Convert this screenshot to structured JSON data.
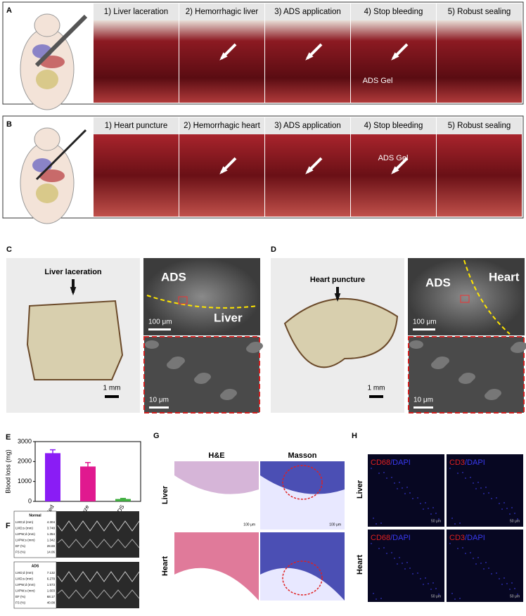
{
  "panel_a": {
    "label": "A",
    "steps": [
      "1) Liver laceration",
      "2) Hemorrhagic liver",
      "3) ADS application",
      "4) Stop bleeding",
      "5) Robust sealing"
    ],
    "annotation": "ADS Gel"
  },
  "panel_b": {
    "label": "B",
    "steps": [
      "1) Heart puncture",
      "2) Hemorrhagic heart",
      "3) ADS application",
      "4) Stop bleeding",
      "5) Robust sealing"
    ],
    "annotation": "ADS Gel"
  },
  "panel_c": {
    "label": "C",
    "callout": "Liver laceration",
    "scale_macro": "1 mm",
    "sem_left": "ADS",
    "sem_right": "Liver",
    "scale_sem": "100 μm",
    "scale_zoom": "10 μm"
  },
  "panel_d": {
    "label": "D",
    "callout": "Heart puncture",
    "scale_macro": "1 mm",
    "sem_left": "ADS",
    "sem_right": "Heart",
    "scale_sem": "100 μm",
    "scale_zoom": "10 μm"
  },
  "panel_e": {
    "label": "E",
    "chart_data": {
      "type": "bar",
      "ylabel": "Blood loss (mg)",
      "categories": [
        "Untreated",
        "Gauze",
        "ADS"
      ],
      "values": [
        2420,
        1750,
        120
      ],
      "errors": [
        170,
        200,
        30
      ],
      "colors": [
        "#8a1cf5",
        "#e0198f",
        "#3fae3f"
      ],
      "ylim": [
        0,
        3000
      ],
      "yticks": [
        0,
        1000,
        2000,
        3000
      ]
    }
  },
  "panel_f": {
    "label": "F",
    "groups": [
      {
        "title": "Normal",
        "rows": [
          [
            "LVID;d (mm)",
            "4.304"
          ],
          [
            "LVID;s (mm)",
            "3.748"
          ],
          [
            "LVPW;d (mm)",
            "1.354"
          ],
          [
            "LVPW;s (mm)",
            "1.342"
          ],
          [
            "EF (%)",
            "28.69"
          ],
          [
            "FS (%)",
            "14.06"
          ]
        ]
      },
      {
        "title": "ADS",
        "rows": [
          [
            "LVID;d (mm)",
            "7.132"
          ],
          [
            "LVID;s (mm)",
            "6.278"
          ],
          [
            "LVPW;d (mm)",
            "1.573"
          ],
          [
            "LVPW;s (mm)",
            "1.603"
          ],
          [
            "EF (%)",
            "68.17"
          ],
          [
            "FS (%)",
            "40.08"
          ]
        ]
      }
    ]
  },
  "panel_g": {
    "label": "G",
    "columns": [
      "H&E",
      "Masson"
    ],
    "rows": [
      "Liver",
      "Heart"
    ],
    "scale": "100 μm"
  },
  "panel_h": {
    "label": "H",
    "columns": [
      {
        "marker": "CD68",
        "stain": "/DAPI"
      },
      {
        "marker": "CD3",
        "stain": "/DAPI"
      }
    ],
    "rows": [
      "Liver",
      "Heart"
    ],
    "scale": "50 μm"
  }
}
